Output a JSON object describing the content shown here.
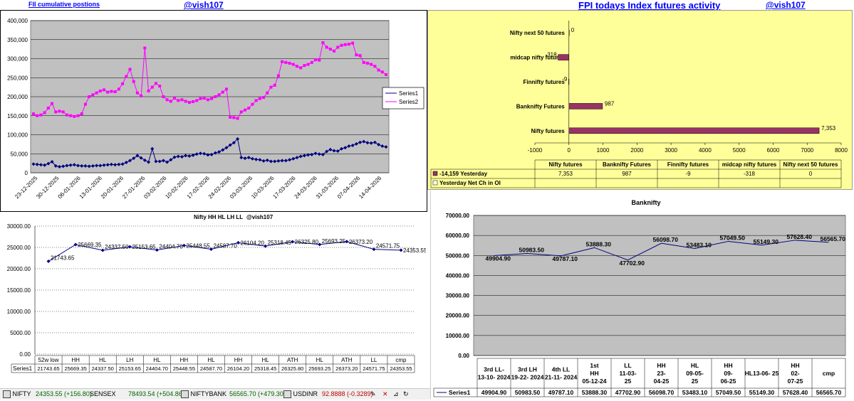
{
  "colors": {
    "plot_bg": "#c0c0c0",
    "yellow_bg": "#ffff99",
    "navy": "#000080",
    "magenta": "#ff00ff",
    "bar_fill": "#993366",
    "header_blue": "#0000ff"
  },
  "headers": {
    "fii_title": "FII cumulative postions",
    "vish_left": "@vish107",
    "fpi_title": "FPI todays Index futures activity",
    "vish_right": "@vish107"
  },
  "statusbar": [
    {
      "name": "NIFTY",
      "value": "24353.55 (+156.80)"
    },
    {
      "name": "SENSEX",
      "value": "78493.54 (+504.86)"
    },
    {
      "name": "NIFTYBANK",
      "value": "56565.70 (+479.30)"
    },
    {
      "name": "USDINR",
      "value": "92.8888 (-0.3289)"
    }
  ],
  "chart_data": [
    {
      "id": "fii_cumulative",
      "type": "line",
      "title": "",
      "ylim": [
        0,
        400000
      ],
      "y_ticks": [
        "0",
        "50,000",
        "100,000",
        "150,000",
        "200,000",
        "250,000",
        "300,000",
        "350,000",
        "400,000"
      ],
      "x_ticks": [
        "23-12-2025",
        "30-12-2025",
        "06-01-2026",
        "13-01-2026",
        "20-01-2026",
        "27-01-2026",
        "03-02-2026",
        "10-02-2026",
        "17-02-2026",
        "24-02-2026",
        "03-03-2026",
        "10-03-2026",
        "17-03-2026",
        "24-03-2026",
        "31-03-2026",
        "07-04-2026",
        "14-04-2026"
      ],
      "legend": [
        "Series1",
        "Series2"
      ],
      "series": [
        {
          "name": "Series1",
          "values": [
            23000,
            22000,
            21000,
            20000,
            24000,
            29000,
            18000,
            16000,
            17000,
            19000,
            20000,
            21000,
            19000,
            18000,
            18000,
            17000,
            18000,
            19000,
            19000,
            20000,
            21000,
            22000,
            21000,
            22000,
            23000,
            27000,
            32000,
            38000,
            45000,
            39000,
            33000,
            28000,
            63000,
            30000,
            30000,
            32000,
            28000,
            34000,
            41000,
            43000,
            42000,
            45000,
            44000,
            46000,
            49000,
            51000,
            50000,
            47000,
            48000,
            52000,
            55000,
            60000,
            66000,
            73000,
            79000,
            89000,
            40000,
            38000,
            40000,
            37000,
            35000,
            34000,
            31000,
            33000,
            30000,
            30000,
            31000,
            32000,
            32000,
            34000,
            37000,
            40000,
            43000,
            45000,
            47000,
            48000,
            51000,
            49000,
            48000,
            56000,
            61000,
            58000,
            57000,
            63000,
            66000,
            70000,
            72000,
            76000,
            80000,
            82000,
            79000,
            78000,
            80000,
            74000,
            70000,
            68000
          ]
        },
        {
          "name": "Series2",
          "values": [
            155000,
            150000,
            152000,
            158000,
            170000,
            182000,
            160000,
            162000,
            160000,
            152000,
            150000,
            148000,
            150000,
            155000,
            180000,
            200000,
            205000,
            210000,
            215000,
            218000,
            212000,
            214000,
            213000,
            220000,
            234000,
            253000,
            272000,
            240000,
            210000,
            202000,
            328000,
            215000,
            225000,
            235000,
            228000,
            200000,
            192000,
            188000,
            196000,
            190000,
            192000,
            188000,
            185000,
            187000,
            190000,
            195000,
            196000,
            192000,
            195000,
            200000,
            205000,
            212000,
            220000,
            146000,
            145000,
            143000,
            160000,
            165000,
            170000,
            180000,
            190000,
            195000,
            198000,
            210000,
            225000,
            230000,
            255000,
            292000,
            290000,
            288000,
            285000,
            280000,
            276000,
            282000,
            285000,
            290000,
            297000,
            296000,
            342000,
            330000,
            325000,
            320000,
            330000,
            335000,
            337000,
            338000,
            341000,
            310000,
            308000,
            290000,
            288000,
            285000,
            280000,
            270000,
            265000,
            258000
          ]
        }
      ]
    },
    {
      "id": "fpi_futures",
      "type": "bar",
      "title": "",
      "categories": [
        "Nifty next 50 futures",
        "midcap nifty futures",
        "Finnifty futures",
        "Banknifty Futures",
        "Nifty futures"
      ],
      "values": [
        0,
        -318,
        -9,
        987,
        7353
      ],
      "data_labels": [
        "0",
        "-318",
        "-9",
        "987",
        "7,353"
      ],
      "xlim": [
        -1000,
        8000
      ],
      "x_ticks": [
        "-1000",
        "0",
        "1000",
        "2000",
        "3000",
        "4000",
        "5000",
        "6000",
        "7000",
        "8000"
      ],
      "table": {
        "headers": [
          "Nifty futures",
          "Banknifty Futures",
          "Finnifty futures",
          "midcap nifty futures",
          "Nifty next 50 futures"
        ],
        "legend_row1": "-14,159 Yesterday",
        "legend_row2": "Yesterday Net Ch in OI",
        "values": [
          "7,353",
          "987",
          "-9",
          "-318",
          "0"
        ]
      }
    },
    {
      "id": "nifty_hh_hl",
      "type": "line",
      "title": "Nifty HH HL LH LL",
      "subtitle": "@vish107",
      "ylim": [
        0,
        30000
      ],
      "y_ticks": [
        "0.00",
        "5000.00",
        "10000.00",
        "15000.00",
        "20000.00",
        "25000.00",
        "30000.00"
      ],
      "categories": [
        "52w low",
        "HH",
        "HL",
        "LH",
        "HL",
        "HH",
        "HL",
        "HH",
        "HL",
        "ATH",
        "HL",
        "ATH",
        "LL",
        "cmp"
      ],
      "series": [
        {
          "name": "Series1",
          "values": [
            21743.65,
            25669.35,
            24337.5,
            25153.65,
            24404.7,
            25448.55,
            24587.7,
            26104.2,
            25318.45,
            26325.8,
            25693.25,
            26373.2,
            24571.75,
            24353.55
          ]
        }
      ],
      "data_labels": [
        "21743.65",
        "25669.35",
        "24337.50",
        "25153.65",
        "24404.70",
        "25448.55",
        "24587.70",
        "26104.20",
        "25318.45",
        "26325.80",
        "25693.25",
        "26373.20",
        "24571.75",
        "24353.55"
      ]
    },
    {
      "id": "banknifty",
      "type": "line",
      "title": "Banknifty",
      "ylim": [
        0,
        70000
      ],
      "y_ticks": [
        "0.00",
        "10000.00",
        "20000.00",
        "30000.00",
        "40000.00",
        "50000.00",
        "60000.00",
        "70000.00"
      ],
      "categories": [
        "3rd LL- 13-10- 2024",
        "3rd LH 19-22- 2024",
        "4th LL 21-11- 2024",
        "1st HH 05-12-24",
        "LL 11-03- 25",
        "HH 23- 04-25",
        "HL 09-05- 25",
        "HH 09- 06-25",
        "HL13-06- 25",
        "HH 02- 07-25",
        "cmp"
      ],
      "series": [
        {
          "name": "Series1",
          "values": [
            49904.9,
            50983.5,
            49787.1,
            53888.3,
            47702.9,
            56098.7,
            53483.1,
            57049.5,
            55149.3,
            57628.4,
            56565.7
          ]
        }
      ],
      "data_labels": [
        "49904.90",
        "50983.50",
        "49787.10",
        "53888.30",
        "47702.90",
        "56098.70",
        "53483.10",
        "57049.50",
        "55149.30",
        "57628.40",
        "56565.70"
      ]
    }
  ]
}
